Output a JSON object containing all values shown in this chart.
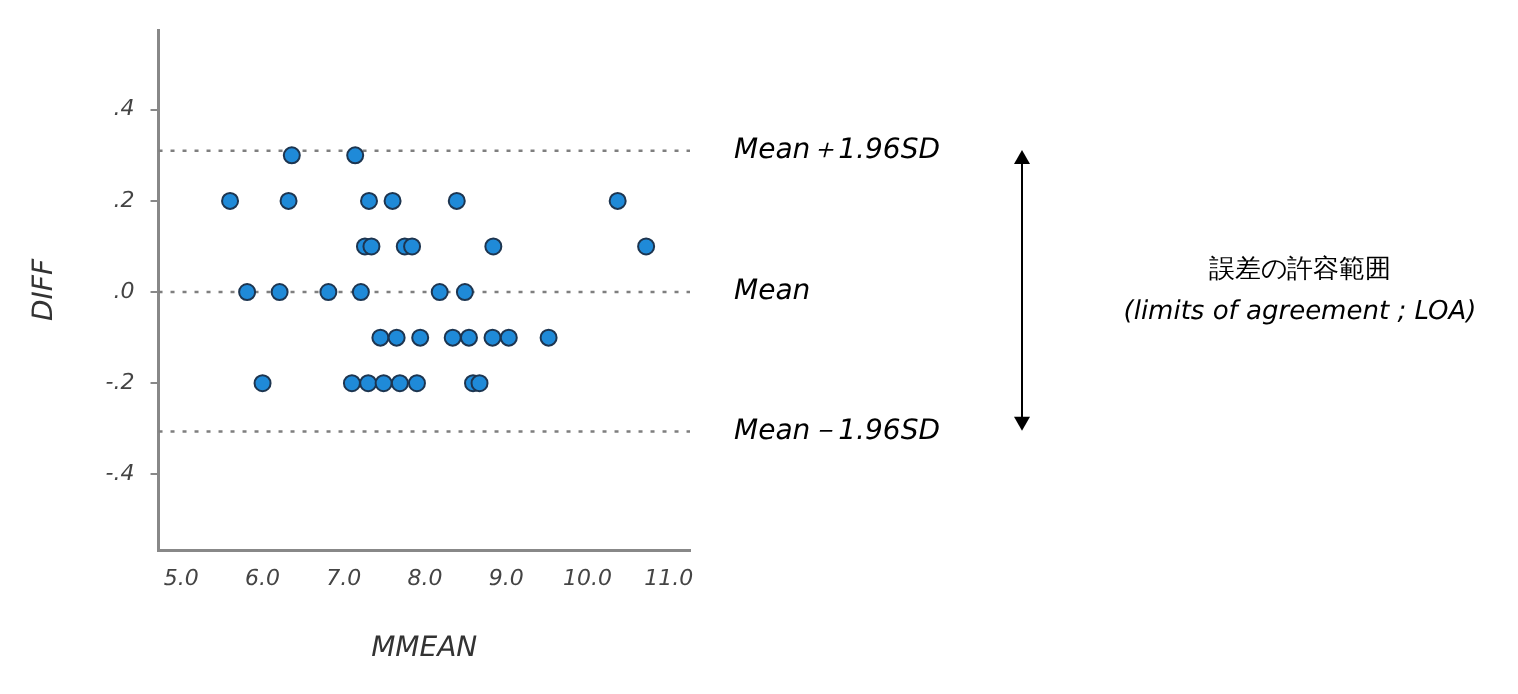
{
  "chart_data": {
    "type": "scatter",
    "xlabel": "MMEAN",
    "ylabel": "DIFF",
    "marker": "circle",
    "legend": false,
    "grid": false,
    "xlim": [
      4.72,
      11.26
    ],
    "ylim": [
      -0.566,
      0.575
    ],
    "xticks": [
      {
        "value": 5,
        "label": "5.0"
      },
      {
        "value": 6,
        "label": "6.0"
      },
      {
        "value": 7,
        "label": "7.0"
      },
      {
        "value": 8,
        "label": "8.0"
      },
      {
        "value": 9,
        "label": "9.0"
      },
      {
        "value": 10,
        "label": "10.0"
      },
      {
        "value": 11,
        "label": "11.0"
      }
    ],
    "yticks": [
      {
        "value": 0.4,
        "label": ".4"
      },
      {
        "value": 0.2,
        "label": ".2"
      },
      {
        "value": 0,
        "label": ".0"
      },
      {
        "value": -0.2,
        "label": "-.2"
      },
      {
        "value": -0.4,
        "label": "-.4"
      }
    ],
    "series": [
      {
        "color": "#1f8ad8",
        "x": [
          6.36,
          7.14,
          5.6,
          6.32,
          7.31,
          7.6,
          8.39,
          10.37,
          7.26,
          7.34,
          7.75,
          7.84,
          8.84,
          10.72,
          5.81,
          6.21,
          6.81,
          7.21,
          8.18,
          8.49,
          7.45,
          7.65,
          7.94,
          8.34,
          8.54,
          8.83,
          9.03,
          9.52,
          6.0,
          7.1,
          7.3,
          7.49,
          7.69,
          7.9,
          8.59,
          8.67
        ],
        "values": [
          0.3,
          0.3,
          0.2,
          0.2,
          0.2,
          0.2,
          0.2,
          0.2,
          0.1,
          0.1,
          0.1,
          0.1,
          0.1,
          0.1,
          0,
          0,
          0,
          0,
          0,
          0,
          -0.1,
          -0.1,
          -0.1,
          -0.1,
          -0.1,
          -0.1,
          -0.1,
          -0.1,
          -0.2,
          -0.2,
          -0.2,
          -0.2,
          -0.2,
          -0.2,
          -0.2,
          -0.2
        ]
      }
    ],
    "ref_lines": [
      {
        "axis": "y",
        "value": 0.31,
        "label": "Mean＋1.96SD",
        "color": "#7f7f7f",
        "line_style": "dotted"
      },
      {
        "axis": "y",
        "value": 0,
        "label": "Mean",
        "color": "#7f7f7f",
        "line_style": "dotted"
      },
      {
        "axis": "y",
        "value": -0.306,
        "label": "Mean－1.96SD",
        "color": "#7f7f7f",
        "line_style": "dotted"
      }
    ],
    "annotations": [
      "誤差の許容範囲",
      "(limits of agreement ; LOA)"
    ]
  }
}
